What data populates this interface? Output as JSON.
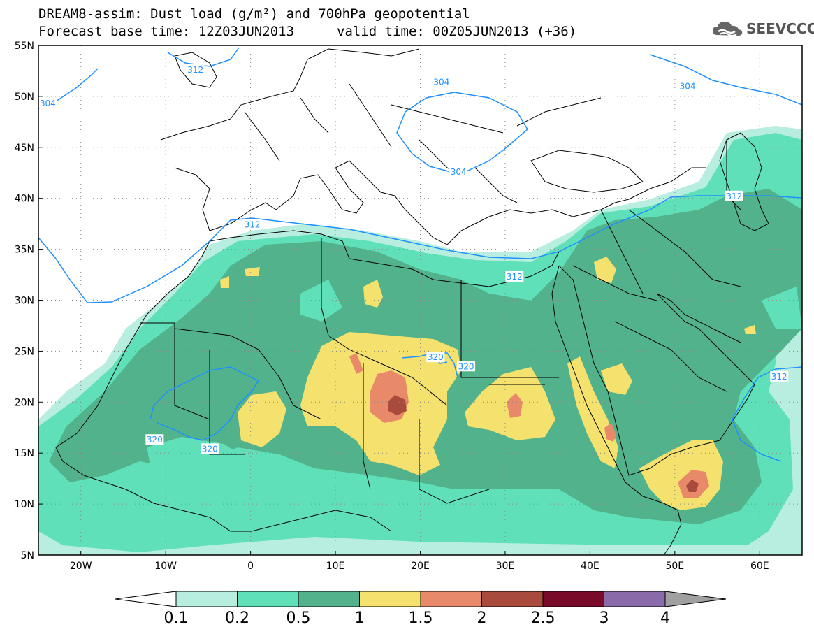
{
  "title": {
    "line1": "DREAM8-assim: Dust load (g/m²) and 700hPa geopotential",
    "base_time": "Forecast base time: 12Z03JUN2013",
    "valid_time": "valid time: 00Z05JUN2013 (+36)"
  },
  "logo": {
    "icon": "cloud-logo-icon",
    "text": "SEEVCCC"
  },
  "map": {
    "lon_range": [
      -25,
      65
    ],
    "lat_range": [
      5,
      55
    ],
    "lon_ticks": [
      {
        "value": -20,
        "label": "20W"
      },
      {
        "value": -10,
        "label": "10W"
      },
      {
        "value": 0,
        "label": "0"
      },
      {
        "value": 10,
        "label": "10E"
      },
      {
        "value": 20,
        "label": "20E"
      },
      {
        "value": 30,
        "label": "30E"
      },
      {
        "value": 40,
        "label": "40E"
      },
      {
        "value": 50,
        "label": "50E"
      },
      {
        "value": 60,
        "label": "60E"
      }
    ],
    "lat_ticks": [
      {
        "value": 55,
        "label": "55N"
      },
      {
        "value": 50,
        "label": "50N"
      },
      {
        "value": 45,
        "label": "45N"
      },
      {
        "value": 40,
        "label": "40N"
      },
      {
        "value": 35,
        "label": "35N"
      },
      {
        "value": 30,
        "label": "30N"
      },
      {
        "value": 25,
        "label": "25N"
      },
      {
        "value": 20,
        "label": "20N"
      },
      {
        "value": 15,
        "label": "15N"
      },
      {
        "value": 10,
        "label": "10N"
      },
      {
        "value": 5,
        "label": "5N"
      }
    ],
    "grid": "dotted",
    "contour_color": "#1e90ff",
    "contour_labels": [
      {
        "label": "312",
        "lon": -6.5,
        "lat": 52.6
      },
      {
        "label": "304",
        "lon": -23.9,
        "lat": 49.3
      },
      {
        "label": "304",
        "lon": 22.5,
        "lat": 51.4
      },
      {
        "label": "304",
        "lon": 24.5,
        "lat": 42.6
      },
      {
        "label": "304",
        "lon": 51.5,
        "lat": 51.0
      },
      {
        "label": "312",
        "lon": 0.2,
        "lat": 37.4
      },
      {
        "label": "312",
        "lon": 31.1,
        "lat": 32.3
      },
      {
        "label": "312",
        "lon": 57.0,
        "lat": 40.2
      },
      {
        "label": "312",
        "lon": 62.3,
        "lat": 22.5
      },
      {
        "label": "320",
        "lon": 21.8,
        "lat": 24.4
      },
      {
        "label": "320",
        "lon": 25.4,
        "lat": 23.5
      },
      {
        "label": "320",
        "lon": -11.3,
        "lat": 16.3
      },
      {
        "label": "320",
        "lon": -4.8,
        "lat": 15.4
      }
    ]
  },
  "colorbar": {
    "levels": [
      "0.1",
      "0.2",
      "0.5",
      "1",
      "1.5",
      "2",
      "2.5",
      "3",
      "4"
    ],
    "colors": [
      "#ffffff",
      "#b8eee0",
      "#5fe0b8",
      "#52b28c",
      "#f5e26e",
      "#e8896a",
      "#a84a3c",
      "#7a0a2a",
      "#8a6aa8",
      "#a0a0a0"
    ]
  }
}
